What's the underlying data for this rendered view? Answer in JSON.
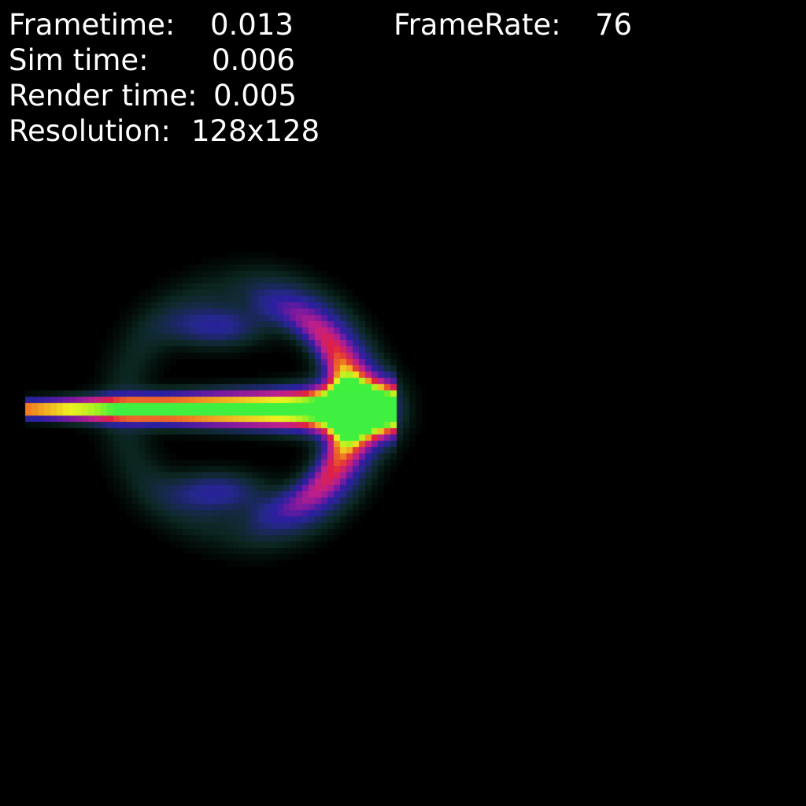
{
  "hud": {
    "frametime": {
      "label": "Frametime:",
      "value": "0.013"
    },
    "framerate": {
      "label": "FrameRate:",
      "value": "76"
    },
    "sim_time": {
      "label": "Sim time:",
      "value": "0.006"
    },
    "render_time": {
      "label": "Render time:",
      "value": "0.005"
    },
    "resolution": {
      "label": "Resolution:",
      "value": "128x128"
    }
  },
  "simulation": {
    "grid_resolution": 128,
    "background_color": "#000000",
    "colormap": [
      "#0a3a2a",
      "#1a5a4a",
      "#22307a",
      "#2a1fa0",
      "#7a1aa0",
      "#c0208a",
      "#e02040",
      "#f08020",
      "#f0f020",
      "#a0f020",
      "#40f040"
    ]
  }
}
